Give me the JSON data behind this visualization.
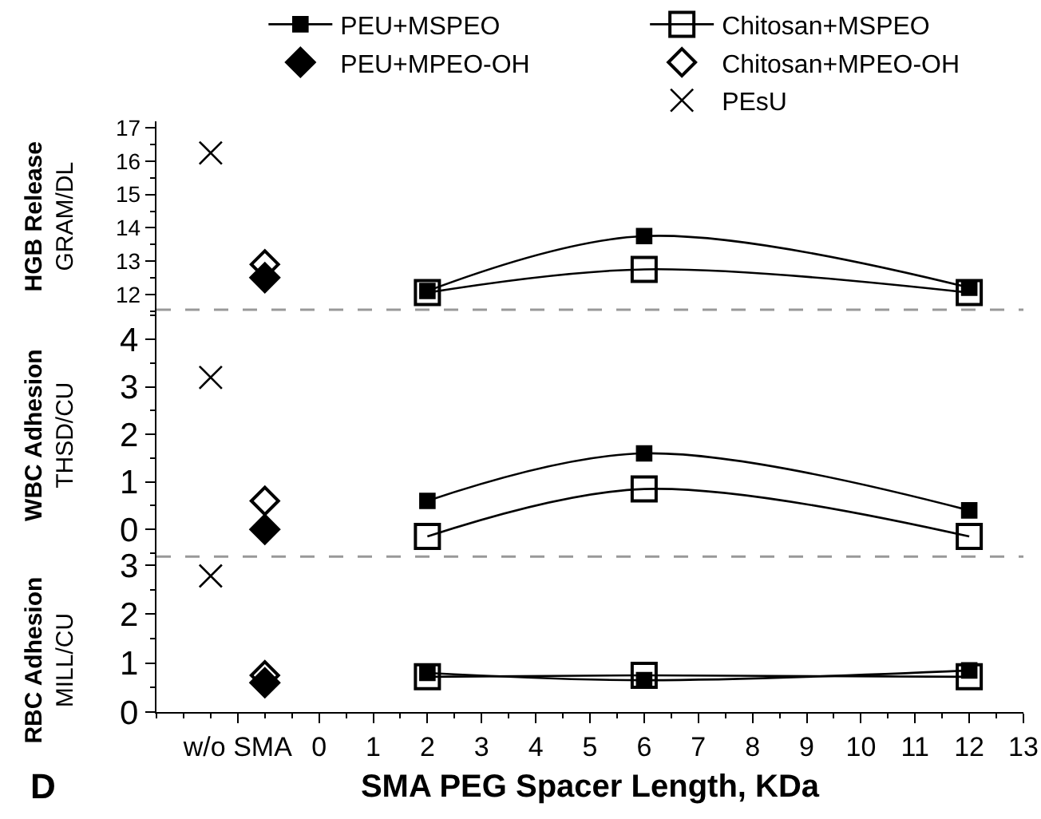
{
  "chart_data": [
    {
      "type": "line",
      "ylabel": "HGB Release\nGRAM/DL",
      "xlim": [
        -3,
        13
      ],
      "ylim": [
        11.5,
        17.2
      ],
      "yticks": [
        12,
        13,
        14,
        15,
        16,
        17
      ],
      "tick_labels": "y",
      "legend": "top",
      "line_style": "solid",
      "ref_lines": [
        {
          "axis": "y",
          "value": 11.5,
          "color": "#999999",
          "line_style": "dashed"
        }
      ],
      "series": [
        {
          "name": "PEU+MSPEO",
          "type": "line",
          "marker": "square",
          "color": "#000000",
          "x": [
            2,
            6,
            12
          ],
          "values": [
            12.1,
            13.75,
            12.2
          ]
        },
        {
          "name": "Chitosan+MSPEO",
          "type": "line",
          "marker": "square-open",
          "color": "#000000",
          "x": [
            2,
            6,
            12
          ],
          "values": [
            12.05,
            12.75,
            12.05
          ]
        },
        {
          "name": "PEU+MPEO-OH",
          "type": "scatter",
          "marker": "diamond",
          "color": "#000000",
          "x": [
            -1
          ],
          "values": [
            12.5
          ]
        },
        {
          "name": "Chitosan+MPEO-OH",
          "type": "scatter",
          "marker": "diamond-open",
          "color": "#000000",
          "x": [
            -1
          ],
          "values": [
            12.9
          ]
        },
        {
          "name": "PEsU",
          "type": "scatter",
          "marker": "cross",
          "color": "#000000",
          "x": [
            -2
          ],
          "values": [
            16.25
          ]
        }
      ]
    },
    {
      "type": "line",
      "ylabel": "WBC Adhesion\nTHSD/CU",
      "xlim": [
        -3,
        13
      ],
      "ylim": [
        -0.6,
        4.6
      ],
      "yticks": [
        0,
        1,
        2,
        3,
        4
      ],
      "tick_labels": "y",
      "line_style": "solid",
      "ref_lines": [
        {
          "axis": "y",
          "value": -0.6,
          "color": "#999999",
          "line_style": "dashed"
        }
      ],
      "series": [
        {
          "type": "line",
          "marker": "square",
          "color": "#000000",
          "x": [
            2,
            6,
            12
          ],
          "values": [
            0.6,
            1.6,
            0.4
          ]
        },
        {
          "type": "line",
          "marker": "square-open",
          "color": "#000000",
          "x": [
            2,
            6,
            12
          ],
          "values": [
            -0.15,
            0.85,
            -0.15
          ]
        },
        {
          "type": "scatter",
          "marker": "diamond",
          "color": "#000000",
          "x": [
            -1
          ],
          "values": [
            0
          ]
        },
        {
          "type": "scatter",
          "marker": "diamond-open",
          "color": "#000000",
          "x": [
            -1
          ],
          "values": [
            0.6
          ]
        },
        {
          "type": "scatter",
          "marker": "cross",
          "color": "#000000",
          "x": [
            -2
          ],
          "values": [
            3.2
          ]
        }
      ]
    },
    {
      "type": "line",
      "ylabel": "RBC Adhesion\nMILL/CU",
      "xlabel": "SMA PEG Spacer Length, KDa",
      "xlim": [
        -3,
        13
      ],
      "xticks": [
        {
          "value": -1.5,
          "label": "w/o SMA"
        },
        0,
        1,
        2,
        3,
        4,
        5,
        6,
        7,
        8,
        9,
        10,
        11,
        12,
        13
      ],
      "ylim": [
        0,
        3.15
      ],
      "yticks": [
        0,
        1,
        2,
        3
      ],
      "line_style": "solid",
      "annotations": [
        "D"
      ],
      "series": [
        {
          "type": "line",
          "marker": "square",
          "color": "#000000",
          "x": [
            2,
            6,
            12
          ],
          "values": [
            0.8,
            0.65,
            0.85
          ]
        },
        {
          "type": "line",
          "marker": "square-open",
          "color": "#000000",
          "x": [
            2,
            6,
            12
          ],
          "values": [
            0.72,
            0.75,
            0.72
          ]
        },
        {
          "type": "scatter",
          "marker": "diamond",
          "color": "#000000",
          "x": [
            -1
          ],
          "values": [
            0.6
          ]
        },
        {
          "type": "scatter",
          "marker": "diamond-open",
          "color": "#000000",
          "x": [
            -1
          ],
          "values": [
            0.75
          ]
        },
        {
          "type": "scatter",
          "marker": "cross",
          "color": "#000000",
          "x": [
            -2
          ],
          "values": [
            2.78
          ]
        }
      ]
    }
  ]
}
